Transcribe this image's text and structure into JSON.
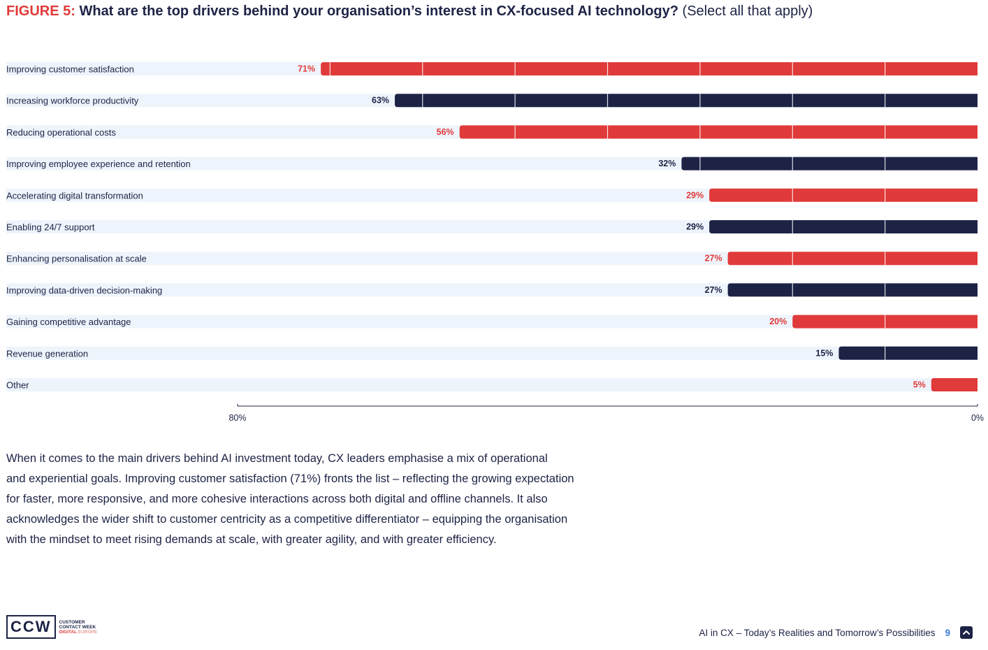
{
  "title": {
    "figure": "FIGURE 5:",
    "question": "What are the top drivers behind your organisation’s interest in CX-focused AI technology?",
    "note": "(Select all that apply)"
  },
  "colors": {
    "red": "#e03a3a",
    "navy": "#1d2345",
    "row_bg": "#eef4fb",
    "axis": "#1d2345"
  },
  "chart_data": {
    "type": "bar",
    "orientation": "horizontal",
    "direction": "right-to-left",
    "categories": [
      "Improving customer satisfaction",
      "Increasing workforce productivity",
      "Reducing operational costs",
      "Improving employee experience and retention",
      "Accelerating digital transformation",
      "Enabling 24/7 support",
      "Enhancing personalisation at scale",
      "Improving data-driven decision-making",
      "Gaining competitive advantage",
      "Revenue generation",
      "Other"
    ],
    "values": [
      71,
      63,
      56,
      32,
      29,
      29,
      27,
      27,
      20,
      15,
      5
    ],
    "value_labels": [
      "71%",
      "63%",
      "56%",
      "32%",
      "29%",
      "29%",
      "27%",
      "27%",
      "20%",
      "15%",
      "5%"
    ],
    "bar_colors": [
      "red",
      "navy",
      "red",
      "navy",
      "red",
      "navy",
      "red",
      "navy",
      "red",
      "navy",
      "red"
    ],
    "xlim": [
      0,
      80
    ],
    "tick_labels": [
      "80%",
      "0%"
    ],
    "gridlines": [
      10,
      20,
      30,
      40,
      50,
      60,
      70
    ]
  },
  "body_text": [
    "When it comes to the main drivers behind AI investment today, CX leaders emphasise a mix of operational",
    "and experiential goals. Improving customer satisfaction (71%) fronts the list – reflecting the growing expectation",
    "for faster, more responsive, and more cohesive interactions across both digital and offline channels. It also",
    "acknowledges the wider shift to customer centricity as a competitive differentiator – equipping the organisation",
    "with the mindset to meet rising demands at scale, with greater agility, and with greater efficiency."
  ],
  "logo": {
    "mark": "CCW",
    "line1": "CUSTOMER",
    "line2": "CONTACT WEEK",
    "line3a": "DIGITAL",
    "line3b": "EUROPE"
  },
  "footer": {
    "text": "AI in CX – Today’s Realities and Tomorrow’s Possibilities",
    "page": "9"
  },
  "icons": {
    "back_to_top": "chevron-up-icon"
  }
}
